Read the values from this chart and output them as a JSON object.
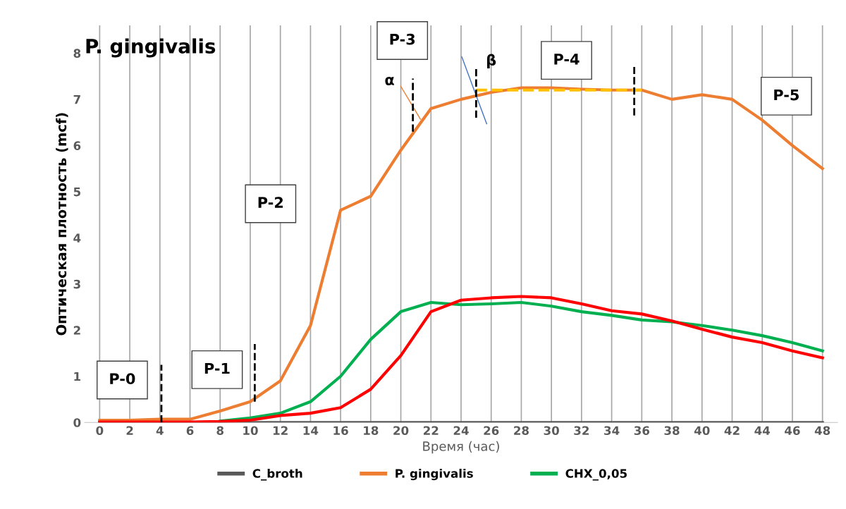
{
  "chart_data": {
    "type": "line",
    "title": "P. gingivalis",
    "xlabel": "Время (час)",
    "ylabel": "Оптическая плотность (mcf)",
    "x": [
      0,
      2,
      4,
      6,
      8,
      10,
      12,
      14,
      16,
      18,
      20,
      22,
      24,
      26,
      28,
      30,
      32,
      34,
      36,
      38,
      40,
      42,
      44,
      46,
      48
    ],
    "xlim": [
      -1,
      49
    ],
    "xticks": [
      0,
      2,
      4,
      6,
      8,
      10,
      12,
      14,
      16,
      18,
      20,
      22,
      24,
      26,
      28,
      30,
      32,
      34,
      36,
      38,
      40,
      42,
      44,
      46,
      48
    ],
    "ylim": [
      0,
      8.6
    ],
    "yticks": [
      0,
      1,
      2,
      3,
      4,
      5,
      6,
      7,
      8
    ],
    "grid": "x",
    "legend": "bottom",
    "marker": "none",
    "line_style": "solid",
    "series": [
      {
        "name": "C_broth",
        "color": "#595959",
        "values": [
          0,
          0,
          0,
          0,
          0,
          0,
          0,
          0,
          0,
          0,
          0,
          0,
          0,
          0,
          0,
          0,
          0,
          0,
          0,
          0,
          0,
          0,
          0,
          0,
          0
        ]
      },
      {
        "name": "P. gingivalis",
        "color": "#ed7d31",
        "values": [
          0.05,
          0.05,
          0.07,
          0.07,
          0.25,
          0.45,
          0.9,
          2.1,
          4.6,
          4.9,
          5.9,
          6.8,
          7.0,
          7.15,
          7.25,
          7.25,
          7.22,
          7.2,
          7.2,
          7.0,
          7.1,
          7.0,
          6.55,
          6.0,
          5.5
        ]
      },
      {
        "name": "CHX_0,05",
        "color": "#00b050",
        "values": [
          null,
          null,
          null,
          null,
          0.03,
          0.1,
          0.2,
          0.45,
          1.0,
          1.8,
          2.4,
          2.6,
          2.55,
          2.57,
          2.6,
          2.52,
          2.4,
          2.32,
          2.22,
          2.18,
          2.1,
          2.0,
          1.88,
          1.73,
          1.55
        ]
      },
      {
        "color": "#ff0000",
        "values": [
          0.01,
          0.01,
          0.01,
          0.01,
          0.02,
          0.05,
          0.15,
          0.2,
          0.32,
          0.72,
          1.45,
          2.4,
          2.65,
          2.7,
          2.73,
          2.7,
          2.57,
          2.42,
          2.35,
          2.2,
          2.02,
          1.85,
          1.73,
          1.55,
          1.4
        ]
      },
      {
        "color": "#ffc000",
        "x": [
          25,
          36
        ],
        "values": [
          7.2,
          7.2
        ],
        "line_style": "dashed"
      },
      {
        "color": "#ed7d31",
        "x": [
          20,
          21.3
        ],
        "values": [
          7.28,
          6.57
        ]
      },
      {
        "color": "#4472c4",
        "x": [
          24.05,
          25.7
        ],
        "values": [
          7.92,
          6.47
        ]
      },
      {
        "color": "#000000",
        "x": [
          4.1,
          4.1
        ],
        "values": [
          0,
          1.25
        ],
        "line_style": "dashed"
      },
      {
        "color": "#000000",
        "x": [
          10.3,
          10.3
        ],
        "values": [
          0.45,
          1.7
        ],
        "line_style": "dashed"
      },
      {
        "color": "#000000",
        "x": [
          20.8,
          20.8
        ],
        "values": [
          6.3,
          7.45
        ],
        "line_style": "dashed"
      },
      {
        "color": "#000000",
        "x": [
          25.0,
          25.0
        ],
        "values": [
          6.6,
          7.7
        ],
        "line_style": "dashed"
      },
      {
        "color": "#000000",
        "x": [
          35.5,
          35.5
        ],
        "values": [
          6.65,
          7.7
        ],
        "line_style": "dashed"
      }
    ],
    "annotations": [
      "P-0",
      "P-1",
      "P-2",
      "P-3",
      "P-4",
      "P-5",
      "α",
      "β"
    ]
  }
}
